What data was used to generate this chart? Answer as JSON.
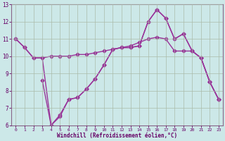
{
  "xlabel": "Windchill (Refroidissement éolien,°C)",
  "background_color": "#cce8e8",
  "line_color": "#993399",
  "xlim": [
    -0.5,
    23.5
  ],
  "ylim": [
    6,
    13
  ],
  "xticks": [
    0,
    1,
    2,
    3,
    4,
    5,
    6,
    7,
    8,
    9,
    10,
    11,
    12,
    13,
    14,
    15,
    16,
    17,
    18,
    19,
    20,
    21,
    22,
    23
  ],
  "yticks": [
    6,
    7,
    8,
    9,
    10,
    11,
    12,
    13
  ],
  "line1_x": [
    0,
    1,
    2,
    3,
    4,
    5,
    6,
    7,
    8,
    9,
    10,
    11,
    12,
    13,
    14,
    15,
    16,
    17,
    18,
    19,
    20,
    21,
    22,
    23
  ],
  "line1_y": [
    11.0,
    10.5,
    9.9,
    9.9,
    10.0,
    10.0,
    10.0,
    10.1,
    10.1,
    10.2,
    10.3,
    10.4,
    10.5,
    10.6,
    10.8,
    11.0,
    11.1,
    11.0,
    10.3,
    10.3,
    10.3,
    9.9,
    8.5,
    7.5
  ],
  "line2_x": [
    0,
    1,
    2,
    3,
    4,
    5,
    6,
    7,
    8,
    9,
    10,
    11,
    12,
    13,
    14,
    15,
    16,
    17,
    18,
    19,
    20,
    21,
    22,
    23
  ],
  "line2_y": [
    11.0,
    10.5,
    9.9,
    9.9,
    6.0,
    6.5,
    7.5,
    7.6,
    8.1,
    8.7,
    9.5,
    10.4,
    10.5,
    10.5,
    10.6,
    12.0,
    12.7,
    12.2,
    11.0,
    11.3,
    10.3,
    9.9,
    8.5,
    7.5
  ],
  "line3_x": [
    3,
    4,
    5,
    6,
    7,
    8,
    9,
    10,
    11,
    12,
    13,
    14,
    15,
    16,
    17,
    18,
    19,
    20,
    21,
    22,
    23
  ],
  "line3_y": [
    8.6,
    6.0,
    6.6,
    7.5,
    7.6,
    8.1,
    8.7,
    9.5,
    10.4,
    10.5,
    10.5,
    10.6,
    12.0,
    12.7,
    12.2,
    11.0,
    11.3,
    10.3,
    9.9,
    8.5,
    7.5
  ],
  "marker": "D",
  "markersize": 2.5,
  "linewidth": 1.0
}
